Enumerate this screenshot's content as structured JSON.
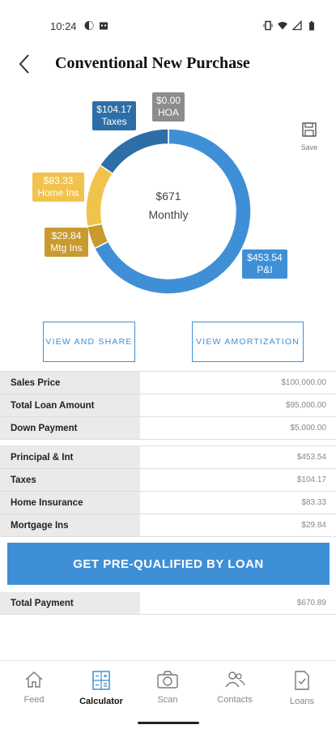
{
  "status_bar": {
    "time": "10:24"
  },
  "header": {
    "title": "Conventional New Purchase"
  },
  "save": {
    "label": "Save"
  },
  "chart_data": {
    "type": "pie",
    "style": "donut",
    "center_amount": "$671",
    "center_label": "Monthly",
    "slices": [
      {
        "name": "P&I",
        "value": 453.54,
        "label": "$453.54",
        "color": "#3f8fd6"
      },
      {
        "name": "Mtg Ins",
        "value": 29.84,
        "label": "$29.84",
        "color": "#c99a2e"
      },
      {
        "name": "Home Ins",
        "value": 83.33,
        "label": "$83.33",
        "color": "#f2c34c"
      },
      {
        "name": "Taxes",
        "value": 104.17,
        "label": "$104.17",
        "color": "#2e6ea6"
      },
      {
        "name": "HOA",
        "value": 0.0,
        "label": "$0.00",
        "color": "#8c8c8c"
      }
    ]
  },
  "actions": {
    "view_share": "VIEW AND SHARE",
    "view_amortization": "VIEW AMORTIZATION"
  },
  "loan_summary": [
    {
      "label": "Sales Price",
      "value": "$100,000.00"
    },
    {
      "label": "Total Loan Amount",
      "value": "$95,000.00"
    },
    {
      "label": "Down Payment",
      "value": "$5,000.00"
    }
  ],
  "payment_breakdown": [
    {
      "label": "Principal & Int",
      "value": "$453.54"
    },
    {
      "label": "Taxes",
      "value": "$104.17"
    },
    {
      "label": "Home Insurance",
      "value": "$83.33"
    },
    {
      "label": "Mortgage Ins",
      "value": "$29.84"
    }
  ],
  "cta": {
    "label": "GET PRE-QUALIFIED BY LOAN"
  },
  "total": {
    "label": "Total Payment",
    "value": "$670.89"
  },
  "bottom_nav": [
    {
      "label": "Feed",
      "icon": "home-icon"
    },
    {
      "label": "Calculator",
      "icon": "calculator-icon",
      "active": true
    },
    {
      "label": "Scan",
      "icon": "camera-icon"
    },
    {
      "label": "Contacts",
      "icon": "contacts-icon"
    },
    {
      "label": "Loans",
      "icon": "document-check-icon"
    }
  ]
}
